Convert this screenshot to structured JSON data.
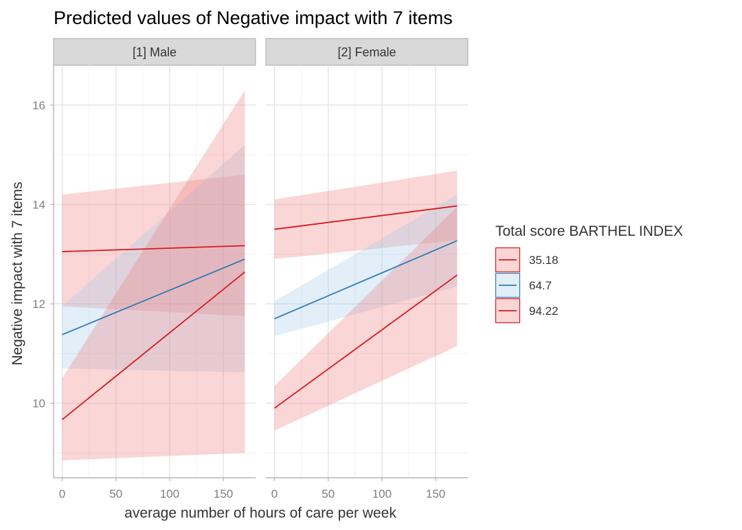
{
  "chart_data": {
    "type": "line",
    "title": "Predicted values of Negative impact with 7 items",
    "xlabel": "average number of hours of care per week",
    "ylabel": "Negative impact with 7 items",
    "xlim": [
      -8,
      180
    ],
    "ylim": [
      8.5,
      16.8
    ],
    "x_ticks": [
      0,
      50,
      100,
      150
    ],
    "y_ticks": [
      10,
      12,
      14,
      16
    ],
    "legend": {
      "title": "Total score BARTHEL INDEX",
      "position": "right",
      "entries": [
        {
          "label": "35.18",
          "color": "#d7191c"
        },
        {
          "label": "64.7",
          "color": "#2c7bb6"
        },
        {
          "label": "94.22",
          "color": "#d7191c"
        }
      ]
    },
    "band_colors": {
      "red": "#f08080",
      "blue": "#a6cbe8"
    },
    "panels": [
      {
        "label": "[1] Male",
        "series": [
          {
            "name": "35.18",
            "color": "#d7191c",
            "x": [
              0,
              170
            ],
            "y": [
              13.05,
              13.17
            ],
            "lower": [
              11.95,
              11.75
            ],
            "upper": [
              14.2,
              14.6
            ]
          },
          {
            "name": "64.7",
            "color": "#2c7bb6",
            "x": [
              0,
              170
            ],
            "y": [
              11.38,
              12.9
            ],
            "lower": [
              10.7,
              10.62
            ],
            "upper": [
              11.95,
              15.2
            ]
          },
          {
            "name": "94.22",
            "color": "#d7191c",
            "x": [
              0,
              170
            ],
            "y": [
              9.67,
              12.64
            ],
            "lower": [
              8.85,
              9.0
            ],
            "upper": [
              10.5,
              16.3
            ]
          }
        ]
      },
      {
        "label": "[2] Female",
        "series": [
          {
            "name": "35.18",
            "color": "#d7191c",
            "x": [
              0,
              170
            ],
            "y": [
              13.5,
              13.97
            ],
            "lower": [
              12.9,
              13.28
            ],
            "upper": [
              14.1,
              14.68
            ]
          },
          {
            "name": "64.7",
            "color": "#2c7bb6",
            "x": [
              0,
              170
            ],
            "y": [
              11.7,
              13.27
            ],
            "lower": [
              11.35,
              12.35
            ],
            "upper": [
              12.05,
              14.2
            ]
          },
          {
            "name": "94.22",
            "color": "#d7191c",
            "x": [
              0,
              170
            ],
            "y": [
              9.9,
              12.58
            ],
            "lower": [
              9.45,
              11.15
            ],
            "upper": [
              10.35,
              13.95
            ]
          }
        ]
      }
    ]
  }
}
